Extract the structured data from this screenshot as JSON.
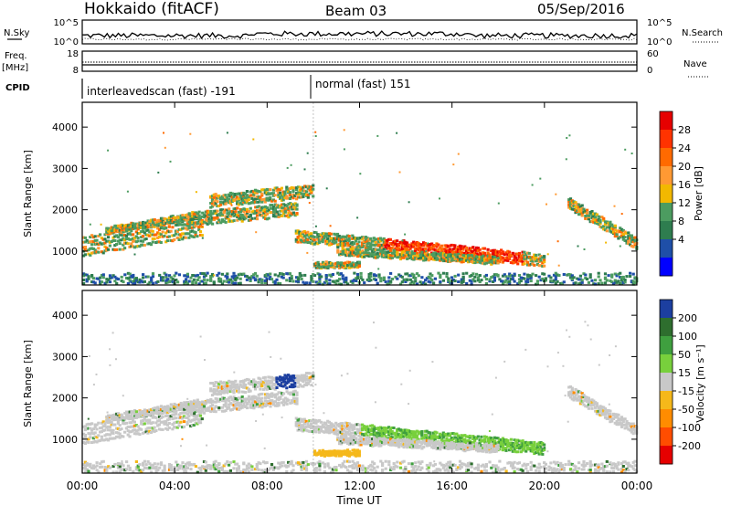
{
  "header": {
    "station": "Hokkaido (fitACF)",
    "beam": "Beam 03",
    "date": "05/Sep/2016"
  },
  "noise_panel": {
    "left_label": "N.Sky",
    "right_label": "N.Search",
    "ticks": [
      "10^5",
      "10^0"
    ]
  },
  "freq_panel": {
    "left_label_1": "Freq.",
    "left_label_2": "[MHz]",
    "left_ticks": [
      "18",
      "8"
    ],
    "right_label": "Nave",
    "right_ticks": [
      "60",
      "0"
    ],
    "cpid_label": "CPID"
  },
  "cpid_segments": [
    {
      "label": "interleavedscan (fast) -191",
      "start_hour": 0,
      "end_hour": 10
    },
    {
      "label": "normal (fast) 151",
      "start_hour": 10,
      "end_hour": 24
    }
  ],
  "chart_data": [
    {
      "type": "heatmap",
      "panel": "power",
      "ylabel": "Slant Range [km]",
      "xlabel": "Time UT",
      "x_ticks": [
        "00:00",
        "04:00",
        "08:00",
        "12:00",
        "16:00",
        "20:00",
        "00:00"
      ],
      "xlim_hours": [
        0,
        24
      ],
      "ylim_km": [
        180,
        4600
      ],
      "y_ticks": [
        1000,
        2000,
        3000,
        4000
      ],
      "colorbar": {
        "label": "Power [dB]",
        "ticks": [
          "28",
          "24",
          "20",
          "16",
          "12",
          "8",
          "4"
        ],
        "colors": [
          "#e60000",
          "#ff3300",
          "#ff6a00",
          "#ff9933",
          "#f2b800",
          "#4c9c60",
          "#2e7d4f",
          "#1f4fa8",
          "#0000ff"
        ]
      }
    },
    {
      "type": "heatmap",
      "panel": "velocity",
      "ylabel": "Slant Range [km]",
      "xlabel": "Time UT",
      "x_ticks": [
        "00:00",
        "04:00",
        "08:00",
        "12:00",
        "16:00",
        "20:00",
        "00:00"
      ],
      "xlim_hours": [
        0,
        24
      ],
      "ylim_km": [
        180,
        4600
      ],
      "y_ticks": [
        1000,
        2000,
        3000,
        4000
      ],
      "colorbar": {
        "label": "Velocity [m s⁻¹]",
        "ticks": [
          "200",
          "100",
          "50",
          "15",
          "-15",
          "-50",
          "-100",
          "-200"
        ],
        "colors": [
          "#1c3fa0",
          "#2e6e2e",
          "#3f9f3f",
          "#78d03c",
          "#c8c8c8",
          "#f5b81a",
          "#ff8c00",
          "#ff4d00",
          "#e60000"
        ]
      }
    }
  ]
}
